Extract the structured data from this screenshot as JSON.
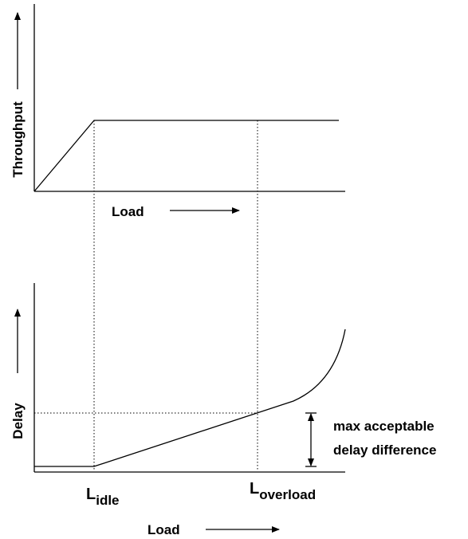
{
  "top": {
    "y_label": "Throughput",
    "x_label": "Load"
  },
  "bottom": {
    "y_label": "Delay",
    "x_label": "Load",
    "markers": [
      {
        "base": "L",
        "sub": "idle"
      },
      {
        "base": "L",
        "sub": "overload"
      }
    ],
    "annotation": [
      "max acceptable",
      "delay difference"
    ]
  }
}
